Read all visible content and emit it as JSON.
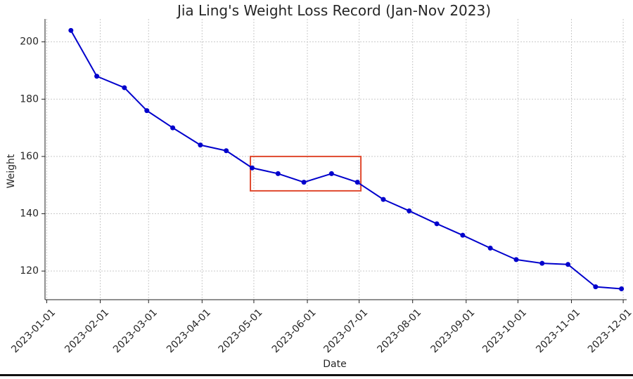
{
  "chart_data": {
    "type": "line",
    "title": "Jia Ling's Weight Loss Record (Jan-Nov 2023)",
    "xlabel": "Date",
    "ylabel": "Weight",
    "x_axis_type": "date",
    "xlim": [
      "2022-12-31",
      "2023-12-03"
    ],
    "ylim": [
      110,
      208
    ],
    "grid": true,
    "series": [
      {
        "color": "#0000cc",
        "x": [
          "2023-01-15",
          "2023-01-30",
          "2023-02-15",
          "2023-02-28",
          "2023-03-15",
          "2023-03-31",
          "2023-04-15",
          "2023-04-30",
          "2023-05-15",
          "2023-05-30",
          "2023-06-15",
          "2023-06-30",
          "2023-07-15",
          "2023-07-30",
          "2023-08-15",
          "2023-08-30",
          "2023-09-15",
          "2023-09-30",
          "2023-10-15",
          "2023-10-30",
          "2023-11-15",
          "2023-11-30"
        ],
        "y": [
          204,
          188,
          184,
          176,
          170,
          164,
          162,
          156,
          154,
          151,
          154,
          151,
          145,
          141,
          136.5,
          132.5,
          128,
          124,
          122.7,
          122.3,
          114.5,
          113.8
        ]
      }
    ],
    "xticks": [
      "2023-01-01",
      "2023-02-01",
      "2023-03-01",
      "2023-04-01",
      "2023-05-01",
      "2023-06-01",
      "2023-07-01",
      "2023-08-01",
      "2023-09-01",
      "2023-10-01",
      "2023-11-01",
      "2023-12-01"
    ],
    "yticks": [
      120,
      140,
      160,
      180,
      200
    ],
    "annotations": [
      {
        "type": "highlight-box",
        "x_range": [
          "2023-04-29",
          "2023-07-02"
        ],
        "y_range": [
          148,
          160
        ],
        "color": "#e04a2f"
      }
    ]
  }
}
